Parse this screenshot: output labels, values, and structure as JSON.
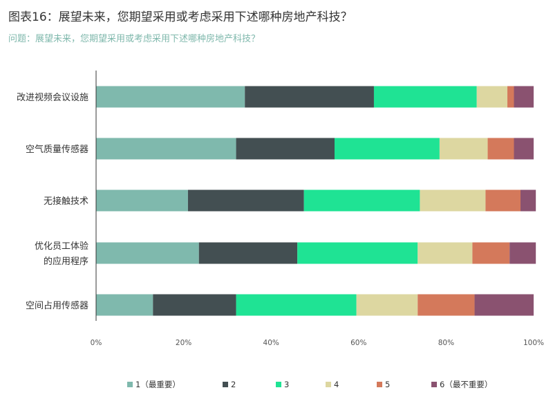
{
  "title": "图表16：展望未来，您期望采用或考虑采用下述哪种房地产科技？",
  "subtitle": "问题：展望未来，您期望采用或考虑采用下述哪种房地产科技？",
  "chart_data": {
    "type": "bar",
    "orientation": "horizontal",
    "stacked": true,
    "categories": [
      [
        "改进视频会议设施"
      ],
      [
        "空气质量传感器"
      ],
      [
        "无接触技术"
      ],
      [
        "优化员工体验",
        "的应用程序"
      ],
      [
        "空间占用传感器"
      ]
    ],
    "series": [
      {
        "name": "1（最重要）",
        "color": "#7fb9ad",
        "values": [
          34,
          32,
          21,
          23.5,
          13
        ]
      },
      {
        "name": "2",
        "color": "#434f52",
        "values": [
          29.5,
          22.5,
          26.5,
          22.5,
          19
        ]
      },
      {
        "name": "3",
        "color": "#1fe394",
        "values": [
          23.5,
          24,
          26.5,
          27.5,
          27.5
        ]
      },
      {
        "name": "4",
        "color": "#ddd7a1",
        "values": [
          7,
          11,
          15,
          12.5,
          14
        ]
      },
      {
        "name": "5",
        "color": "#d4795b",
        "values": [
          1.5,
          6,
          8,
          8.5,
          13
        ]
      },
      {
        "name": "6（最不重要）",
        "color": "#8a5270",
        "values": [
          4.5,
          4.5,
          3.5,
          6,
          13.5
        ]
      }
    ],
    "x_ticks": [
      "0%",
      "20%",
      "40%",
      "60%",
      "80%",
      "100%"
    ],
    "xlim": [
      0,
      100
    ],
    "grid": false,
    "legend_position": "bottom"
  }
}
